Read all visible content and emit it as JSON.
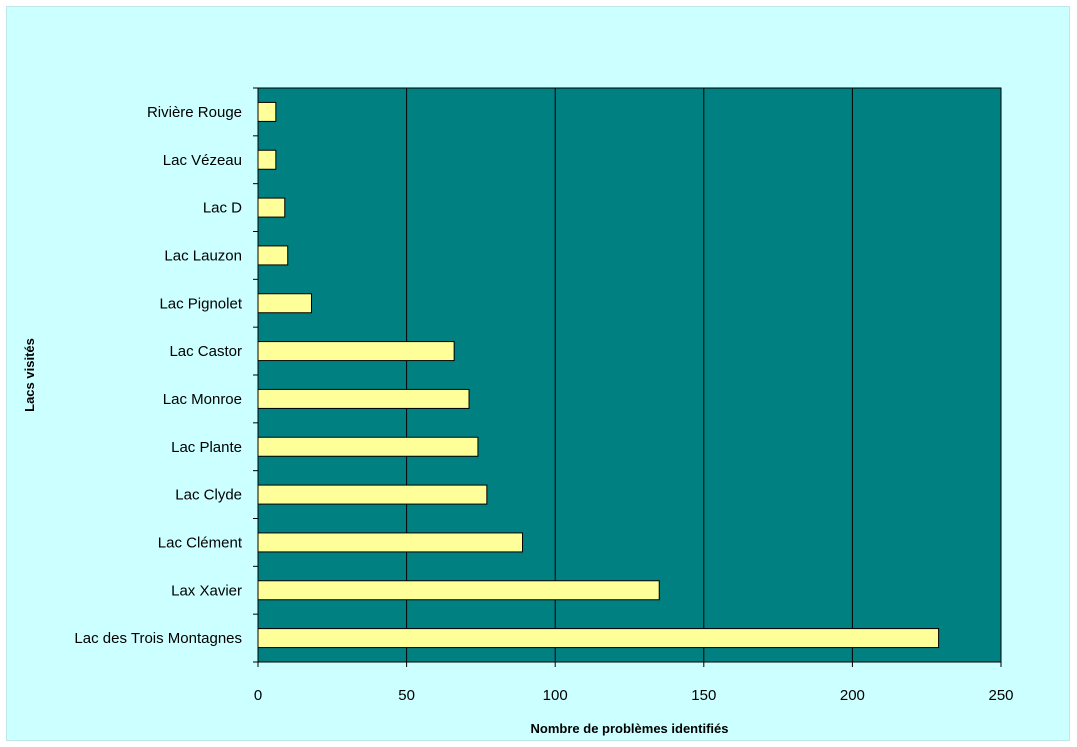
{
  "chart_data": {
    "type": "bar",
    "orientation": "horizontal",
    "title": "",
    "xlabel": "Nombre de problèmes identifiés",
    "ylabel": "Lacs visités",
    "categories": [
      "Lac des Trois Montagnes",
      "Lax Xavier",
      "Lac Clément",
      "Lac Clyde",
      "Lac Plante",
      "Lac Monroe",
      "Lac Castor",
      "Lac Pignolet",
      "Lac Lauzon",
      "Lac D",
      "Lac Vézeau",
      "Rivière Rouge"
    ],
    "values": [
      229,
      135,
      89,
      77,
      74,
      71,
      66,
      18,
      10,
      9,
      6,
      6
    ],
    "xlim": [
      0,
      250
    ],
    "xticks": [
      0,
      50,
      100,
      150,
      200,
      250
    ],
    "grid": "vertical",
    "legend": "none",
    "colors": {
      "plot_background": "#008080",
      "bar_fill": "#ffff99",
      "bar_stroke": "#000000",
      "gridline": "#000000",
      "page_background": "#ccffff"
    }
  }
}
